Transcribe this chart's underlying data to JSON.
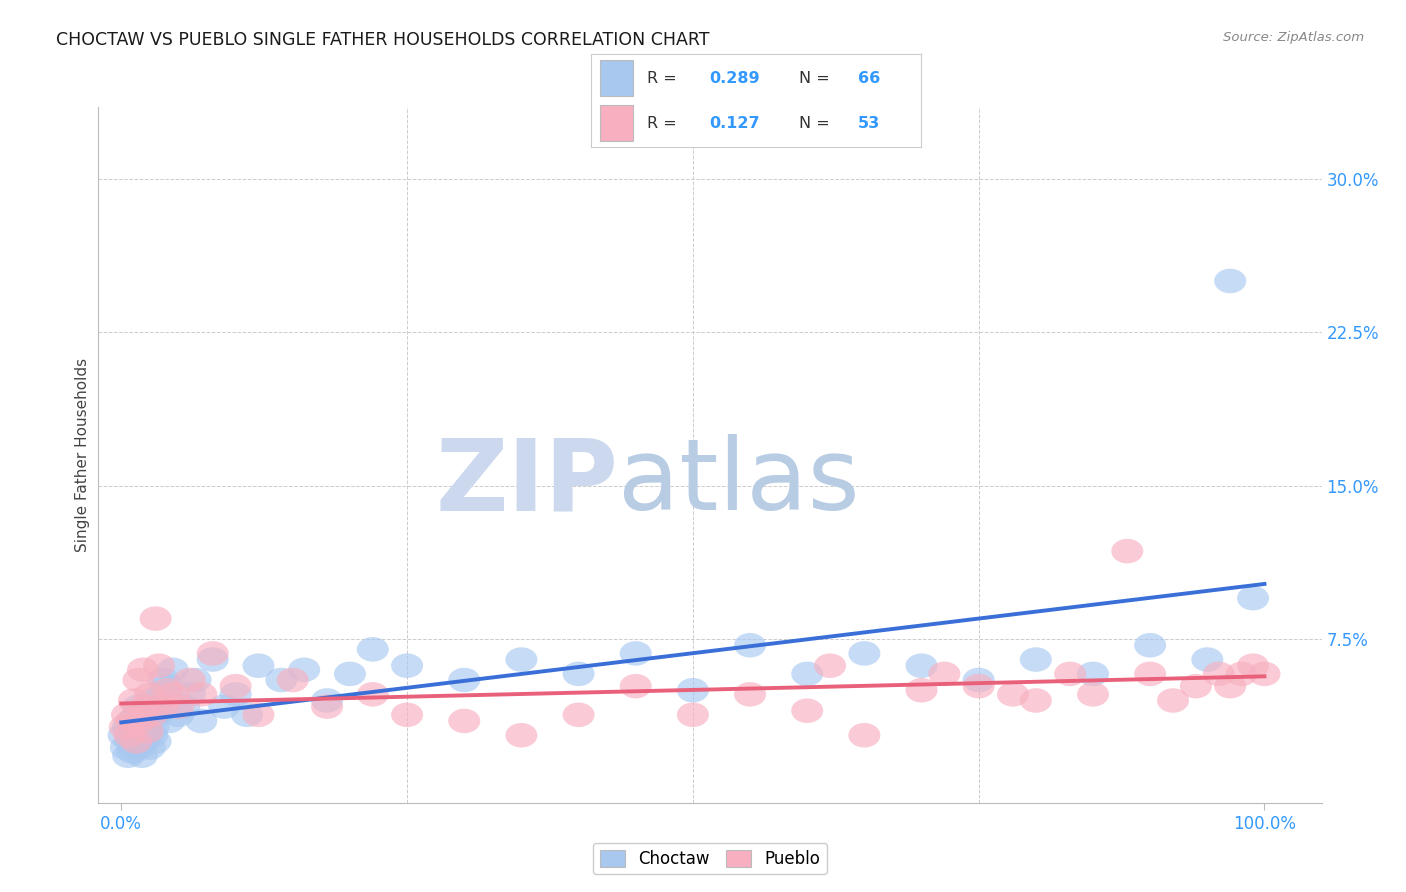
{
  "title": "CHOCTAW VS PUEBLO SINGLE FATHER HOUSEHOLDS CORRELATION CHART",
  "source": "Source: ZipAtlas.com",
  "ylabel": "Single Father Households",
  "xlim": [
    -0.02,
    1.05
  ],
  "ylim": [
    -0.005,
    0.335
  ],
  "xticks": [
    0.0,
    1.0
  ],
  "xtick_labels": [
    "0.0%",
    "100.0%"
  ],
  "yticks": [
    0.0,
    0.075,
    0.15,
    0.225,
    0.3
  ],
  "ytick_labels": [
    "",
    "7.5%",
    "15.0%",
    "22.5%",
    "30.0%"
  ],
  "choctaw_color": "#a8c8f0",
  "pueblo_color": "#f8b0c0",
  "choctaw_line_color": "#3a6fd8",
  "pueblo_line_color": "#e8607a",
  "choctaw_R": 0.289,
  "choctaw_N": 66,
  "pueblo_R": 0.127,
  "pueblo_N": 53,
  "background_color": "#ffffff",
  "grid_color": "#cccccc",
  "choctaw_x": [
    0.002,
    0.004,
    0.006,
    0.006,
    0.008,
    0.009,
    0.01,
    0.011,
    0.012,
    0.013,
    0.014,
    0.015,
    0.015,
    0.016,
    0.017,
    0.018,
    0.019,
    0.02,
    0.021,
    0.022,
    0.022,
    0.023,
    0.025,
    0.026,
    0.027,
    0.028,
    0.03,
    0.031,
    0.033,
    0.035,
    0.037,
    0.04,
    0.042,
    0.045,
    0.05,
    0.055,
    0.06,
    0.065,
    0.07,
    0.08,
    0.09,
    0.1,
    0.11,
    0.12,
    0.14,
    0.16,
    0.18,
    0.2,
    0.22,
    0.25,
    0.3,
    0.35,
    0.4,
    0.45,
    0.5,
    0.55,
    0.6,
    0.65,
    0.7,
    0.75,
    0.8,
    0.85,
    0.9,
    0.95,
    0.97,
    0.99
  ],
  "choctaw_y": [
    0.028,
    0.022,
    0.018,
    0.032,
    0.025,
    0.035,
    0.02,
    0.028,
    0.03,
    0.025,
    0.038,
    0.022,
    0.042,
    0.028,
    0.032,
    0.018,
    0.035,
    0.025,
    0.04,
    0.03,
    0.038,
    0.035,
    0.022,
    0.045,
    0.028,
    0.032,
    0.025,
    0.038,
    0.042,
    0.048,
    0.055,
    0.052,
    0.035,
    0.06,
    0.038,
    0.042,
    0.048,
    0.055,
    0.035,
    0.065,
    0.042,
    0.048,
    0.038,
    0.062,
    0.055,
    0.06,
    0.045,
    0.058,
    0.07,
    0.062,
    0.055,
    0.065,
    0.058,
    0.068,
    0.05,
    0.072,
    0.058,
    0.068,
    0.062,
    0.055,
    0.065,
    0.058,
    0.072,
    0.065,
    0.25,
    0.095
  ],
  "pueblo_x": [
    0.003,
    0.005,
    0.007,
    0.009,
    0.011,
    0.013,
    0.015,
    0.017,
    0.019,
    0.021,
    0.023,
    0.025,
    0.027,
    0.03,
    0.033,
    0.036,
    0.04,
    0.045,
    0.05,
    0.06,
    0.07,
    0.08,
    0.1,
    0.12,
    0.15,
    0.18,
    0.22,
    0.25,
    0.3,
    0.35,
    0.4,
    0.45,
    0.5,
    0.55,
    0.6,
    0.65,
    0.7,
    0.72,
    0.75,
    0.78,
    0.8,
    0.83,
    0.85,
    0.88,
    0.9,
    0.92,
    0.94,
    0.96,
    0.97,
    0.98,
    0.99,
    1.0,
    0.62
  ],
  "pueblo_y": [
    0.032,
    0.038,
    0.028,
    0.035,
    0.045,
    0.025,
    0.055,
    0.035,
    0.06,
    0.042,
    0.03,
    0.048,
    0.038,
    0.085,
    0.062,
    0.042,
    0.05,
    0.048,
    0.042,
    0.055,
    0.048,
    0.068,
    0.052,
    0.038,
    0.055,
    0.042,
    0.048,
    0.038,
    0.035,
    0.028,
    0.038,
    0.052,
    0.038,
    0.048,
    0.04,
    0.028,
    0.05,
    0.058,
    0.052,
    0.048,
    0.045,
    0.058,
    0.048,
    0.118,
    0.058,
    0.045,
    0.052,
    0.058,
    0.052,
    0.058,
    0.062,
    0.058,
    0.062
  ]
}
